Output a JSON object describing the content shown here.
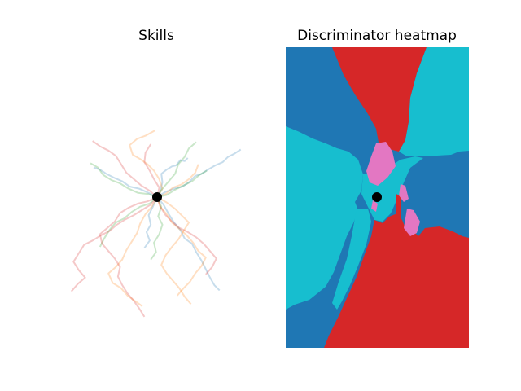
{
  "chart_data": [
    {
      "type": "line",
      "title": "Skills",
      "xlabel": "",
      "ylabel": "",
      "axes_visible": false,
      "origin_marker": {
        "x": 0,
        "y": 0,
        "color": "#000000"
      },
      "series_colors": [
        "#1f77b4",
        "#ff7f0e",
        "#2ca02c",
        "#d62728"
      ],
      "series": [
        {
          "color": "#1f77b4",
          "points": [
            [
              0,
              0
            ],
            [
              0.3,
              0.6
            ],
            [
              0.5,
              1.4
            ],
            [
              0.4,
              2.2
            ],
            [
              0.9,
              2.6
            ],
            [
              1.4,
              2.9
            ],
            [
              1.8,
              3.0
            ],
            [
              2.2,
              3.5
            ],
            [
              2.6,
              3.4
            ],
            [
              2.9,
              3.7
            ]
          ]
        },
        {
          "color": "#1f77b4",
          "points": [
            [
              0,
              0
            ],
            [
              0.8,
              0.5
            ],
            [
              1.6,
              0.8
            ],
            [
              2.4,
              1.0
            ],
            [
              3.0,
              1.4
            ],
            [
              3.6,
              2.0
            ],
            [
              4.2,
              2.2
            ],
            [
              4.8,
              2.6
            ],
            [
              5.5,
              3.0
            ],
            [
              6.2,
              3.3
            ],
            [
              6.7,
              3.8
            ],
            [
              7.3,
              4.1
            ],
            [
              7.9,
              4.5
            ]
          ]
        },
        {
          "color": "#1f77b4",
          "points": [
            [
              0,
              0
            ],
            [
              -0.8,
              0.4
            ],
            [
              -1.7,
              0.8
            ],
            [
              -2.6,
              1.0
            ],
            [
              -3.3,
              1.5
            ],
            [
              -4.0,
              1.8
            ],
            [
              -4.8,
              2.2
            ],
            [
              -5.4,
              2.6
            ],
            [
              -6.0,
              2.8
            ]
          ]
        },
        {
          "color": "#1f77b4",
          "points": [
            [
              0,
              0
            ],
            [
              0.6,
              -0.7
            ],
            [
              1.1,
              -1.6
            ],
            [
              1.6,
              -2.4
            ],
            [
              2.2,
              -3.1
            ],
            [
              2.6,
              -3.9
            ],
            [
              3.3,
              -4.4
            ],
            [
              3.7,
              -5.2
            ],
            [
              4.2,
              -6.0
            ],
            [
              4.6,
              -6.8
            ],
            [
              5.0,
              -7.6
            ],
            [
              5.4,
              -8.3
            ],
            [
              5.9,
              -8.8
            ]
          ]
        },
        {
          "color": "#1f77b4",
          "points": [
            [
              0,
              0
            ],
            [
              -0.4,
              -0.9
            ],
            [
              -0.8,
              -1.7
            ],
            [
              -0.6,
              -2.6
            ],
            [
              -1.0,
              -3.3
            ],
            [
              -0.7,
              -4.1
            ],
            [
              -1.2,
              -4.8
            ]
          ]
        },
        {
          "color": "#ff7f0e",
          "points": [
            [
              0,
              0
            ],
            [
              0.5,
              0.8
            ],
            [
              0.2,
              1.7
            ],
            [
              -0.3,
              2.5
            ],
            [
              -0.9,
              3.1
            ],
            [
              -1.6,
              3.6
            ],
            [
              -2.3,
              4.0
            ],
            [
              -2.6,
              4.9
            ],
            [
              -1.9,
              5.5
            ],
            [
              -1.1,
              5.8
            ],
            [
              -0.2,
              6.3
            ]
          ]
        },
        {
          "color": "#ff7f0e",
          "points": [
            [
              0,
              0
            ],
            [
              0.9,
              -0.5
            ],
            [
              1.7,
              -1.1
            ],
            [
              2.4,
              -1.8
            ],
            [
              3.0,
              -2.4
            ],
            [
              2.5,
              -3.2
            ],
            [
              2.0,
              -4.0
            ],
            [
              1.4,
              -4.7
            ],
            [
              0.8,
              -5.5
            ],
            [
              0.4,
              -6.4
            ],
            [
              0.9,
              -7.2
            ],
            [
              1.5,
              -7.9
            ],
            [
              2.1,
              -8.6
            ],
            [
              2.6,
              -9.4
            ],
            [
              3.2,
              -10.1
            ]
          ]
        },
        {
          "color": "#ff7f0e",
          "points": [
            [
              0,
              0
            ],
            [
              -0.5,
              -0.9
            ],
            [
              -1.1,
              -1.6
            ],
            [
              -1.6,
              -2.5
            ],
            [
              -1.9,
              -3.4
            ],
            [
              -2.4,
              -4.2
            ],
            [
              -2.9,
              -5.0
            ],
            [
              -3.3,
              -5.9
            ],
            [
              -3.9,
              -6.6
            ],
            [
              -4.6,
              -7.2
            ],
            [
              -4.2,
              -8.1
            ],
            [
              -3.4,
              -8.6
            ],
            [
              -2.8,
              -9.3
            ],
            [
              -2.1,
              -9.8
            ],
            [
              -1.4,
              -10.3
            ]
          ]
        },
        {
          "color": "#ff7f0e",
          "points": [
            [
              0,
              0
            ],
            [
              0.8,
              0.3
            ],
            [
              1.5,
              0.9
            ],
            [
              2.3,
              1.2
            ],
            [
              3.0,
              1.7
            ],
            [
              3.6,
              2.3
            ],
            [
              3.9,
              3.1
            ]
          ]
        },
        {
          "color": "#ff7f0e",
          "points": [
            [
              0,
              0
            ],
            [
              0.3,
              -0.9
            ],
            [
              0.9,
              -1.6
            ],
            [
              1.4,
              -2.4
            ],
            [
              2.1,
              -3.0
            ],
            [
              2.8,
              -3.6
            ],
            [
              3.4,
              -4.3
            ],
            [
              3.9,
              -5.1
            ],
            [
              4.6,
              -5.7
            ],
            [
              4.2,
              -6.5
            ],
            [
              3.6,
              -7.2
            ],
            [
              3.1,
              -8.0
            ],
            [
              2.5,
              -8.6
            ],
            [
              1.9,
              -9.3
            ]
          ]
        },
        {
          "color": "#2ca02c",
          "points": [
            [
              0,
              0
            ],
            [
              -0.9,
              0.3
            ],
            [
              -1.8,
              0.4
            ],
            [
              -2.7,
              0.8
            ],
            [
              -3.5,
              1.3
            ],
            [
              -4.3,
              1.6
            ],
            [
              -5.1,
              2.1
            ],
            [
              -5.6,
              2.8
            ],
            [
              -6.3,
              3.2
            ]
          ]
        },
        {
          "color": "#2ca02c",
          "points": [
            [
              0,
              0
            ],
            [
              0.5,
              0.8
            ],
            [
              1.1,
              1.5
            ],
            [
              1.7,
              2.2
            ],
            [
              2.0,
              3.1
            ],
            [
              2.6,
              3.8
            ],
            [
              3.0,
              4.6
            ],
            [
              3.7,
              5.2
            ]
          ]
        },
        {
          "color": "#2ca02c",
          "points": [
            [
              0,
              0
            ],
            [
              -0.7,
              -0.6
            ],
            [
              -1.6,
              -0.9
            ],
            [
              -2.4,
              -1.4
            ],
            [
              -3.1,
              -2.0
            ],
            [
              -3.9,
              -2.4
            ],
            [
              -4.5,
              -3.1
            ],
            [
              -5.0,
              -3.9
            ],
            [
              -5.4,
              -4.7
            ]
          ]
        },
        {
          "color": "#2ca02c",
          "points": [
            [
              0,
              0
            ],
            [
              0.4,
              -0.9
            ],
            [
              0.1,
              -1.8
            ],
            [
              0.5,
              -2.6
            ],
            [
              0.2,
              -3.5
            ],
            [
              -0.3,
              -4.3
            ],
            [
              -0.1,
              -5.2
            ],
            [
              -0.6,
              -5.9
            ]
          ]
        },
        {
          "color": "#2ca02c",
          "points": [
            [
              0,
              0
            ],
            [
              0.9,
              0.2
            ],
            [
              1.7,
              0.7
            ],
            [
              2.5,
              1.1
            ],
            [
              3.3,
              1.5
            ],
            [
              4.0,
              2.1
            ],
            [
              4.7,
              2.5
            ]
          ]
        },
        {
          "color": "#d62728",
          "points": [
            [
              0,
              0
            ],
            [
              -0.7,
              0.6
            ],
            [
              -1.5,
              1.1
            ],
            [
              -2.2,
              1.7
            ],
            [
              -2.9,
              2.3
            ],
            [
              -3.4,
              3.1
            ],
            [
              -3.9,
              3.9
            ],
            [
              -4.6,
              4.4
            ],
            [
              -5.4,
              4.8
            ],
            [
              -6.1,
              5.3
            ]
          ]
        },
        {
          "color": "#d62728",
          "points": [
            [
              0,
              0
            ],
            [
              -0.6,
              -0.7
            ],
            [
              -1.4,
              -1.2
            ],
            [
              -2.2,
              -1.7
            ],
            [
              -3.0,
              -2.1
            ],
            [
              -3.8,
              -2.6
            ],
            [
              -4.5,
              -3.2
            ],
            [
              -5.3,
              -3.6
            ],
            [
              -6.1,
              -4.1
            ],
            [
              -6.9,
              -4.5
            ],
            [
              -7.4,
              -5.3
            ],
            [
              -7.9,
              -6.1
            ],
            [
              -7.4,
              -6.9
            ],
            [
              -6.8,
              -7.6
            ],
            [
              -7.5,
              -8.2
            ],
            [
              -8.1,
              -8.9
            ]
          ]
        },
        {
          "color": "#d62728",
          "points": [
            [
              0,
              0
            ],
            [
              -0.9,
              -0.4
            ],
            [
              -1.8,
              -0.6
            ],
            [
              -2.7,
              -1.0
            ],
            [
              -3.5,
              -1.5
            ],
            [
              -4.0,
              -2.3
            ],
            [
              -4.7,
              -2.9
            ],
            [
              -5.4,
              -3.5
            ],
            [
              -5.2,
              -4.4
            ],
            [
              -4.6,
              -5.1
            ],
            [
              -4.0,
              -5.8
            ],
            [
              -3.5,
              -6.6
            ],
            [
              -3.7,
              -7.5
            ],
            [
              -3.3,
              -8.3
            ],
            [
              -2.8,
              -9.1
            ],
            [
              -2.2,
              -9.8
            ],
            [
              -1.7,
              -10.5
            ],
            [
              -1.2,
              -11.3
            ]
          ]
        },
        {
          "color": "#d62728",
          "points": [
            [
              0,
              0
            ],
            [
              0.3,
              -0.9
            ],
            [
              0.8,
              -1.7
            ],
            [
              1.4,
              -2.3
            ],
            [
              2.1,
              -2.9
            ],
            [
              2.9,
              -3.3
            ],
            [
              3.7,
              -3.8
            ],
            [
              4.4,
              -4.4
            ],
            [
              5.0,
              -5.1
            ],
            [
              5.6,
              -5.8
            ],
            [
              5.2,
              -6.6
            ],
            [
              4.6,
              -7.3
            ]
          ]
        },
        {
          "color": "#d62728",
          "points": [
            [
              0,
              0
            ],
            [
              0.2,
              0.9
            ],
            [
              -0.3,
              1.7
            ],
            [
              -0.7,
              2.5
            ],
            [
              -1.2,
              3.3
            ],
            [
              -1.1,
              4.2
            ],
            [
              -0.6,
              5.0
            ]
          ]
        }
      ]
    },
    {
      "type": "heatmap",
      "title": "Discriminator heatmap",
      "xlabel": "",
      "ylabel": "",
      "axes_visible": false,
      "origin_marker": {
        "x": 0,
        "y": 0,
        "color": "#000000"
      },
      "region_colors": {
        "skill_0": "#1f77b4",
        "skill_1": "#17becf",
        "skill_2": "#d62728",
        "skill_3": "#e377c2"
      }
    }
  ]
}
